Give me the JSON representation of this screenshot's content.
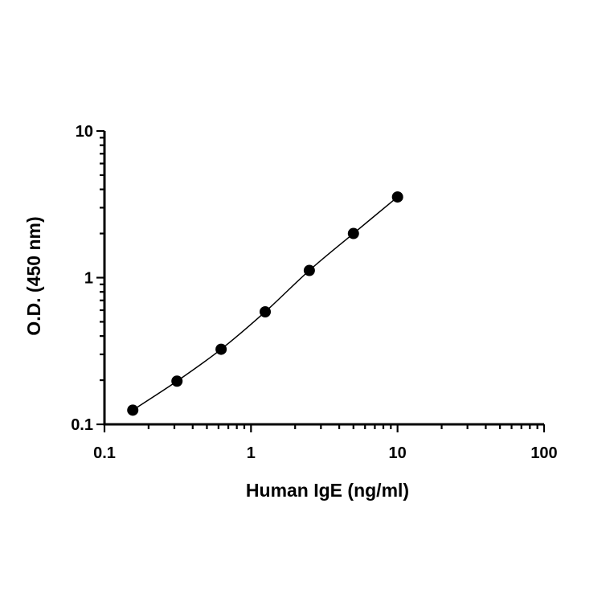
{
  "chart_data": {
    "type": "scatter",
    "xlabel": "Human IgE (ng/ml)",
    "ylabel": "O.D. (450 nm)",
    "xscale": "log",
    "yscale": "log",
    "xlim": [
      0.1,
      100
    ],
    "ylim": [
      0.1,
      10
    ],
    "x_ticks": [
      0.1,
      1,
      10,
      100
    ],
    "x_tick_labels": [
      "0.1",
      "1",
      "10",
      "100"
    ],
    "y_ticks": [
      0.1,
      1,
      10
    ],
    "y_tick_labels": [
      "0.1",
      "1",
      "10"
    ],
    "grid": false,
    "series": [
      {
        "x": [
          0.156,
          0.3125,
          0.625,
          1.25,
          2.5,
          5,
          10
        ],
        "y": [
          0.125,
          0.197,
          0.325,
          0.585,
          1.12,
          2.0,
          3.55
        ],
        "color": "#000000",
        "marker": "filled-circle",
        "fit_curve": true
      }
    ]
  }
}
